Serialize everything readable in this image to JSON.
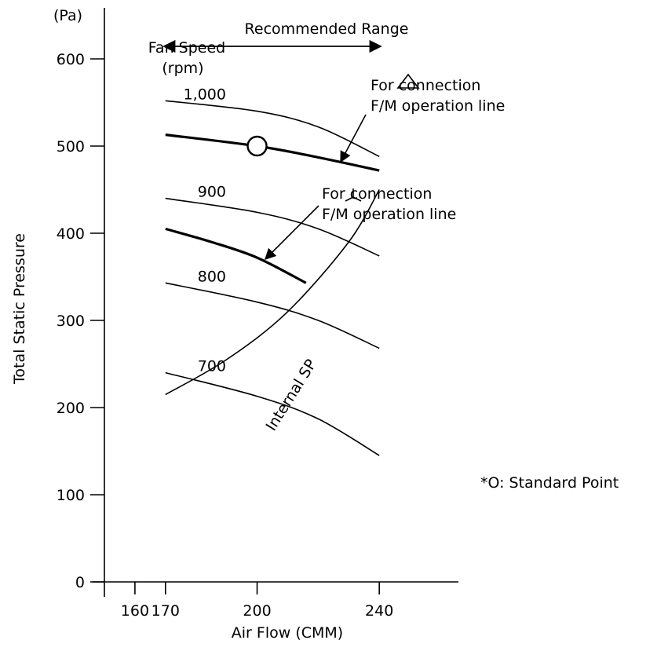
{
  "chart_data": {
    "type": "line",
    "xlabel": "Air Flow (CMM)",
    "ylabel": "Total Static Pressure",
    "yunit": "(Pa)",
    "xlim": [
      150,
      260
    ],
    "ylim": [
      0,
      600
    ],
    "xticks": [
      {
        "value": 160,
        "label": "160"
      },
      {
        "value": 170,
        "label": "170"
      },
      {
        "value": 200,
        "label": "200"
      },
      {
        "value": 240,
        "label": "240"
      }
    ],
    "yticks": [
      {
        "value": 0,
        "label": "0"
      },
      {
        "value": 100,
        "label": "100"
      },
      {
        "value": 200,
        "label": "200"
      },
      {
        "value": 300,
        "label": "300"
      },
      {
        "value": 400,
        "label": "400"
      },
      {
        "value": 500,
        "label": "500"
      },
      {
        "value": 600,
        "label": "600"
      }
    ],
    "fan_speed_title": "Fan Speed",
    "fan_speed_unit": "(rpm)",
    "recommended_range": {
      "label": "Recommended Range",
      "x": [
        170,
        240
      ]
    },
    "series": [
      {
        "name": "1,000",
        "kind": "fan",
        "x": [
          170,
          200,
          220,
          240
        ],
        "y": [
          552,
          540,
          522,
          488
        ]
      },
      {
        "name": "900",
        "kind": "fan",
        "x": [
          170,
          200,
          220,
          240
        ],
        "y": [
          440,
          424,
          405,
          374
        ]
      },
      {
        "name": "800",
        "kind": "fan",
        "x": [
          170,
          200,
          220,
          240
        ],
        "y": [
          343,
          321,
          300,
          268
        ]
      },
      {
        "name": "700",
        "kind": "fan",
        "x": [
          170,
          200,
          220,
          240
        ],
        "y": [
          240,
          213,
          187,
          145
        ]
      },
      {
        "name": "For △connection F/M operation line",
        "kind": "operation",
        "x": [
          170,
          200,
          220,
          240
        ],
        "y": [
          513,
          500,
          487,
          472
        ]
      },
      {
        "name": "For ⅄connection F/M operation line",
        "kind": "operation",
        "x": [
          170,
          185,
          200,
          216
        ],
        "y": [
          405,
          390,
          372,
          343
        ]
      },
      {
        "name": "Internal SP",
        "kind": "system",
        "x": [
          170,
          190,
          210,
          230,
          240
        ],
        "y": [
          215,
          255,
          310,
          390,
          450
        ]
      }
    ],
    "standard_point": {
      "x": 200,
      "y": 500
    },
    "delta_label_prefix": "For ",
    "delta_label_suffix": "connection",
    "delta_label_line2": "F/M operation line",
    "star_label_prefix": "For ",
    "star_label_suffix": "connection",
    "star_label_line2": "F/M operation line",
    "internal_sp_label": "Internal SP",
    "note": "*O: Standard Point"
  }
}
